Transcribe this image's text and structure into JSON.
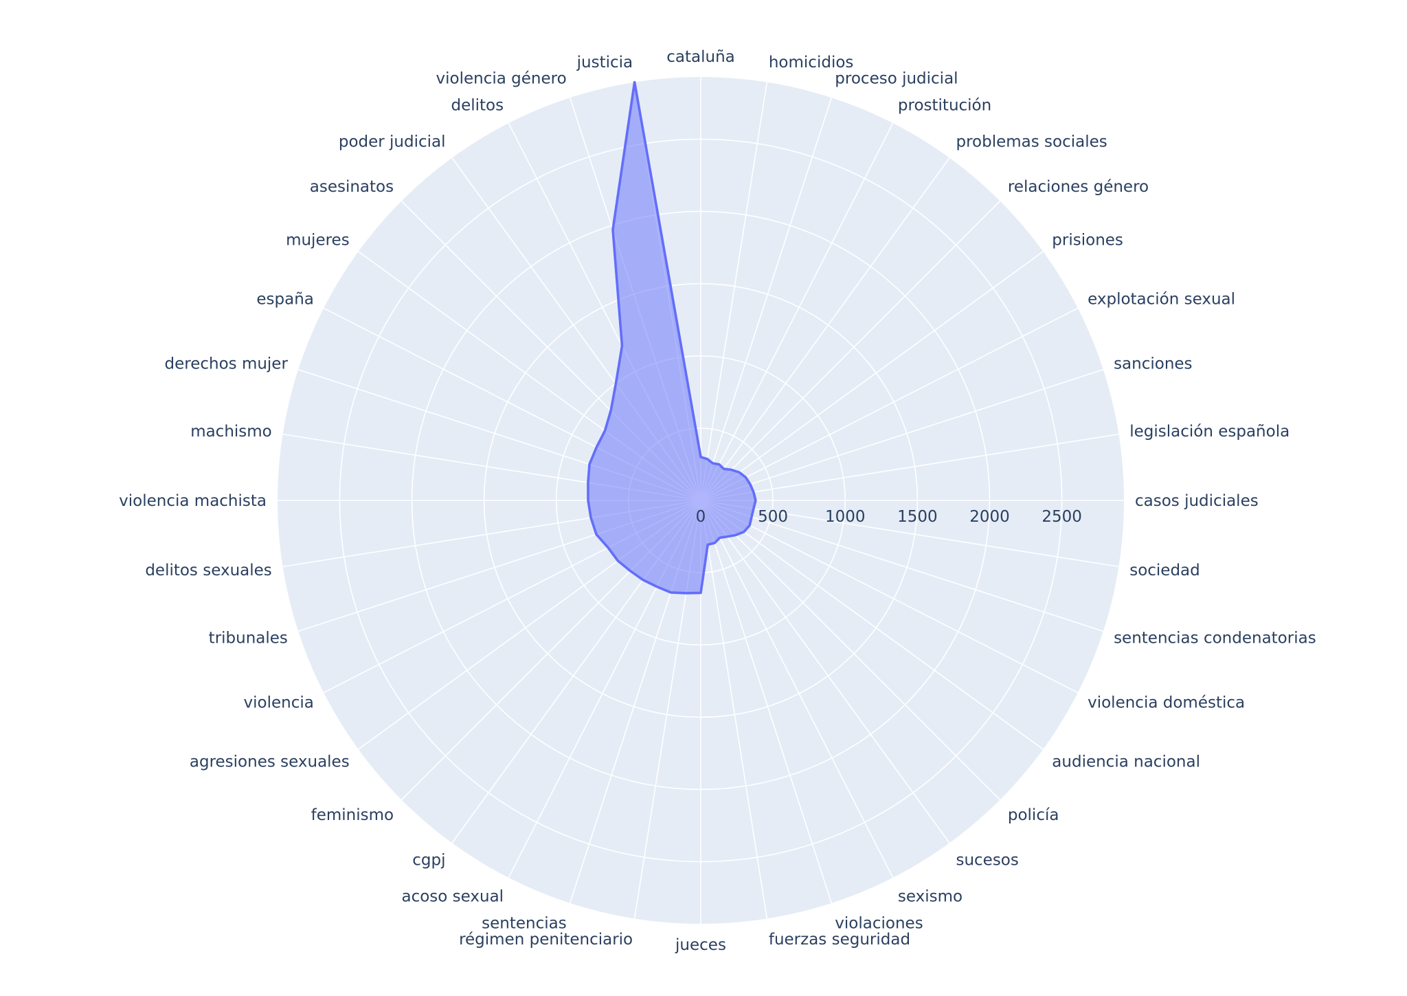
{
  "chart_data": {
    "type": "radar",
    "categories": [
      "cataluña",
      "homicidios",
      "proceso judicial",
      "prostitución",
      "problemas sociales",
      "relaciones género",
      "prisiones",
      "explotación sexual",
      "sanciones",
      "legislación española",
      "casos judiciales",
      "sociedad",
      "sentencias condenatorias",
      "violencia doméstica",
      "audiencia nacional",
      "policía",
      "sucesos",
      "sexismo",
      "violaciones",
      "fuerzas seguridad",
      "jueces",
      "régimen penitenciario",
      "sentencias",
      "acoso sexual",
      "cgpj",
      "feminismo",
      "agresiones sexuales",
      "violencia",
      "tribunales",
      "delitos sexuales",
      "violencia machista",
      "machismo",
      "derechos mujer",
      "españa",
      "mujeres",
      "asesinatos",
      "poder judicial",
      "delitos",
      "violencia género",
      "justicia"
    ],
    "series": [
      {
        "values": [
          300,
          290,
          270,
          280,
          270,
          300,
          330,
          350,
          360,
          370,
          380,
          370,
          370,
          380,
          370,
          340,
          310,
          290,
          310,
          310,
          640,
          650,
          670,
          670,
          680,
          690,
          710,
          720,
          760,
          770,
          780,
          790,
          810,
          810,
          820,
          880,
          1000,
          1200,
          1970,
          2930
        ],
        "color": "#636efa",
        "fill": "rgba(99,110,250,0.5)"
      }
    ],
    "radial_ticks": [
      "0",
      "500",
      "1000",
      "1500",
      "2000",
      "2500"
    ],
    "radial_tick_values": [
      0,
      500,
      1000,
      1500,
      2000,
      2500
    ],
    "radial_range": [
      0,
      2930
    ],
    "rotation_deg": 90,
    "direction": "clockwise",
    "grid": true,
    "colors": {
      "background": "#e5ecf6",
      "grid": "#ffffff",
      "text": "#2a3f5f"
    }
  }
}
